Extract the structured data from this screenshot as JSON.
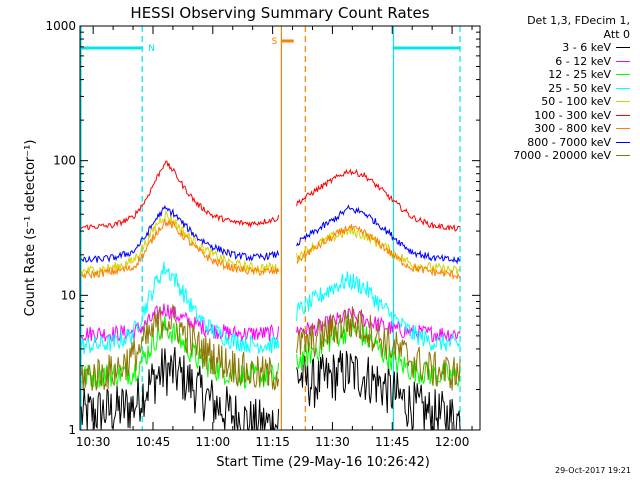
{
  "chart_data": {
    "type": "line",
    "title": "HESSI Observing Summary Count Rates",
    "xlabel": "Start Time (29-May-16 10:26:42)",
    "ylabel": "Count Rate (s⁻¹ detector⁻¹)",
    "yscale": "log",
    "ylim": [
      1,
      1000
    ],
    "x_tick_labels": [
      "10:30",
      "10:45",
      "11:00",
      "11:15",
      "11:30",
      "11:45",
      "12:00"
    ],
    "x_tick_minutes": [
      630,
      645,
      660,
      675,
      690,
      705,
      720
    ],
    "xlim_minutes": [
      626.7,
      727
    ],
    "y_tick_labels": [
      "1",
      "10",
      "100",
      "1000"
    ],
    "y_tick_values": [
      1,
      10,
      100,
      1000
    ],
    "legend_header": [
      "Det 1,3, FDecim 1,",
      "Att 0"
    ],
    "legend_position": "right",
    "data_gap_minutes": [
      676.5,
      681
    ],
    "flags": [
      {
        "label": "N",
        "color": "#00e5ee",
        "start_min": 626.7,
        "end_min": 642.3
      },
      {
        "label": "N",
        "color": "#00e5ee",
        "start_min": 705.3,
        "end_min": 722
      },
      {
        "label": "S",
        "color": "#ff7f00",
        "start_min": 677.2,
        "end_min": 680.3
      }
    ],
    "vertical_markers": [
      {
        "minute": 642.3,
        "color": "#00e5ee",
        "style": "dashed"
      },
      {
        "minute": 705.3,
        "color": "#00e5ee",
        "style": "solid"
      },
      {
        "minute": 722,
        "color": "#00e5ee",
        "style": "dashed"
      },
      {
        "minute": 677.2,
        "color": "#ff7f00",
        "style": "solid"
      },
      {
        "minute": 683.2,
        "color": "#ff7f00",
        "style": "dashed"
      }
    ],
    "series": [
      {
        "name": "3 - 6 keV",
        "color": "#000000",
        "points": [
          [
            627,
            1.3
          ],
          [
            635,
            1.4
          ],
          [
            640,
            1.5
          ],
          [
            643,
            2.0
          ],
          [
            646,
            2.5
          ],
          [
            648,
            2.8
          ],
          [
            650,
            2.7
          ],
          [
            653,
            2.4
          ],
          [
            656,
            2.0
          ],
          [
            660,
            1.6
          ],
          [
            665,
            1.3
          ],
          [
            670,
            1.1
          ],
          [
            676,
            1.1
          ],
          [
            681,
            2.6
          ],
          [
            685,
            2.2
          ],
          [
            690,
            2.5
          ],
          [
            694,
            2.7
          ],
          [
            698,
            2.5
          ],
          [
            702,
            2.2
          ],
          [
            706,
            1.8
          ],
          [
            710,
            1.5
          ],
          [
            715,
            1.3
          ],
          [
            722,
            1.2
          ]
        ]
      },
      {
        "name": "6 - 12 keV",
        "color": "#ff00ff",
        "points": [
          [
            627,
            5.2
          ],
          [
            635,
            5.2
          ],
          [
            640,
            5.3
          ],
          [
            643,
            6.0
          ],
          [
            646,
            7.3
          ],
          [
            648,
            8.0
          ],
          [
            650,
            7.4
          ],
          [
            653,
            6.6
          ],
          [
            656,
            6.0
          ],
          [
            660,
            5.5
          ],
          [
            665,
            5.2
          ],
          [
            670,
            5.2
          ],
          [
            676,
            5.2
          ],
          [
            681,
            5.5
          ],
          [
            685,
            5.6
          ],
          [
            690,
            6.3
          ],
          [
            694,
            7.1
          ],
          [
            698,
            6.6
          ],
          [
            702,
            6.0
          ],
          [
            706,
            5.6
          ],
          [
            710,
            5.3
          ],
          [
            715,
            5.2
          ],
          [
            722,
            5.2
          ]
        ]
      },
      {
        "name": "12 - 25 keV",
        "color": "#00ff00",
        "points": [
          [
            627,
            2.5
          ],
          [
            635,
            2.6
          ],
          [
            640,
            2.7
          ],
          [
            643,
            3.5
          ],
          [
            646,
            5.0
          ],
          [
            648,
            5.8
          ],
          [
            650,
            5.3
          ],
          [
            653,
            4.3
          ],
          [
            656,
            3.4
          ],
          [
            660,
            2.9
          ],
          [
            665,
            2.6
          ],
          [
            670,
            2.5
          ],
          [
            676,
            2.5
          ],
          [
            681,
            3.2
          ],
          [
            685,
            3.8
          ],
          [
            690,
            4.8
          ],
          [
            694,
            5.6
          ],
          [
            698,
            5.0
          ],
          [
            702,
            3.9
          ],
          [
            706,
            3.2
          ],
          [
            710,
            2.8
          ],
          [
            715,
            2.6
          ],
          [
            722,
            2.5
          ]
        ]
      },
      {
        "name": "25 - 50 keV",
        "color": "#00ffff",
        "points": [
          [
            627,
            4.2
          ],
          [
            635,
            4.4
          ],
          [
            640,
            5.2
          ],
          [
            643,
            8.0
          ],
          [
            646,
            13.0
          ],
          [
            648,
            16.0
          ],
          [
            650,
            14.0
          ],
          [
            653,
            10.0
          ],
          [
            656,
            7.0
          ],
          [
            660,
            5.5
          ],
          [
            665,
            4.6
          ],
          [
            670,
            4.3
          ],
          [
            676,
            4.3
          ],
          [
            681,
            7.5
          ],
          [
            685,
            9.0
          ],
          [
            690,
            11.5
          ],
          [
            694,
            13.0
          ],
          [
            698,
            11.5
          ],
          [
            702,
            8.5
          ],
          [
            706,
            6.5
          ],
          [
            710,
            5.2
          ],
          [
            715,
            4.5
          ],
          [
            722,
            4.3
          ]
        ]
      },
      {
        "name": "50 - 100 keV",
        "color": "#d4d400",
        "points": [
          [
            627,
            15
          ],
          [
            635,
            16
          ],
          [
            640,
            18
          ],
          [
            643,
            24
          ],
          [
            646,
            34
          ],
          [
            648,
            40
          ],
          [
            650,
            36
          ],
          [
            653,
            29
          ],
          [
            656,
            24
          ],
          [
            660,
            20
          ],
          [
            665,
            17
          ],
          [
            670,
            16
          ],
          [
            676,
            16
          ],
          [
            681,
            19
          ],
          [
            685,
            23
          ],
          [
            690,
            27
          ],
          [
            694,
            30
          ],
          [
            698,
            28
          ],
          [
            702,
            24
          ],
          [
            706,
            20
          ],
          [
            710,
            17
          ],
          [
            715,
            16
          ],
          [
            722,
            15
          ]
        ]
      },
      {
        "name": "100 - 300 keV",
        "color": "#ff0000",
        "points": [
          [
            627,
            32
          ],
          [
            635,
            33
          ],
          [
            640,
            38
          ],
          [
            643,
            50
          ],
          [
            646,
            75
          ],
          [
            648,
            98
          ],
          [
            650,
            85
          ],
          [
            653,
            62
          ],
          [
            656,
            48
          ],
          [
            660,
            39
          ],
          [
            665,
            35
          ],
          [
            670,
            34
          ],
          [
            676,
            37
          ],
          [
            681,
            48
          ],
          [
            685,
            58
          ],
          [
            690,
            72
          ],
          [
            694,
            84
          ],
          [
            698,
            78
          ],
          [
            702,
            62
          ],
          [
            706,
            48
          ],
          [
            710,
            38
          ],
          [
            715,
            33
          ],
          [
            722,
            31
          ]
        ]
      },
      {
        "name": "300 - 800 keV",
        "color": "#ff7f00",
        "points": [
          [
            627,
            14
          ],
          [
            635,
            15
          ],
          [
            640,
            16
          ],
          [
            643,
            21
          ],
          [
            646,
            30
          ],
          [
            648,
            35
          ],
          [
            650,
            33
          ],
          [
            653,
            27
          ],
          [
            656,
            22
          ],
          [
            660,
            18
          ],
          [
            665,
            16
          ],
          [
            670,
            15
          ],
          [
            676,
            15
          ],
          [
            681,
            18
          ],
          [
            685,
            22
          ],
          [
            690,
            27
          ],
          [
            694,
            32
          ],
          [
            698,
            29
          ],
          [
            702,
            24
          ],
          [
            706,
            19
          ],
          [
            710,
            16
          ],
          [
            715,
            15
          ],
          [
            722,
            14
          ]
        ]
      },
      {
        "name": "800 - 7000 keV",
        "color": "#0000ff",
        "points": [
          [
            627,
            18
          ],
          [
            635,
            19
          ],
          [
            640,
            21
          ],
          [
            643,
            27
          ],
          [
            646,
            38
          ],
          [
            648,
            44
          ],
          [
            650,
            41
          ],
          [
            653,
            33
          ],
          [
            656,
            27
          ],
          [
            660,
            23
          ],
          [
            665,
            20
          ],
          [
            670,
            19
          ],
          [
            676,
            20
          ],
          [
            681,
            24
          ],
          [
            685,
            29
          ],
          [
            690,
            36
          ],
          [
            694,
            44
          ],
          [
            698,
            41
          ],
          [
            702,
            33
          ],
          [
            706,
            26
          ],
          [
            710,
            21
          ],
          [
            715,
            19
          ],
          [
            722,
            18
          ]
        ]
      },
      {
        "name": "7000 - 20000 keV",
        "color": "#8b7500",
        "points": [
          [
            627,
            2.5
          ],
          [
            635,
            2.7
          ],
          [
            640,
            3.5
          ],
          [
            643,
            4.5
          ],
          [
            646,
            6.0
          ],
          [
            648,
            6.8
          ],
          [
            650,
            6.4
          ],
          [
            653,
            5.2
          ],
          [
            656,
            4.2
          ],
          [
            660,
            3.5
          ],
          [
            665,
            3.0
          ],
          [
            670,
            2.6
          ],
          [
            676,
            2.6
          ],
          [
            681,
            4.2
          ],
          [
            685,
            4.6
          ],
          [
            690,
            5.5
          ],
          [
            694,
            6.4
          ],
          [
            698,
            5.8
          ],
          [
            702,
            4.8
          ],
          [
            706,
            4.0
          ],
          [
            710,
            3.3
          ],
          [
            715,
            2.8
          ],
          [
            722,
            2.6
          ]
        ]
      }
    ]
  },
  "footer_timestamp": "29-Oct-2017 19:21"
}
